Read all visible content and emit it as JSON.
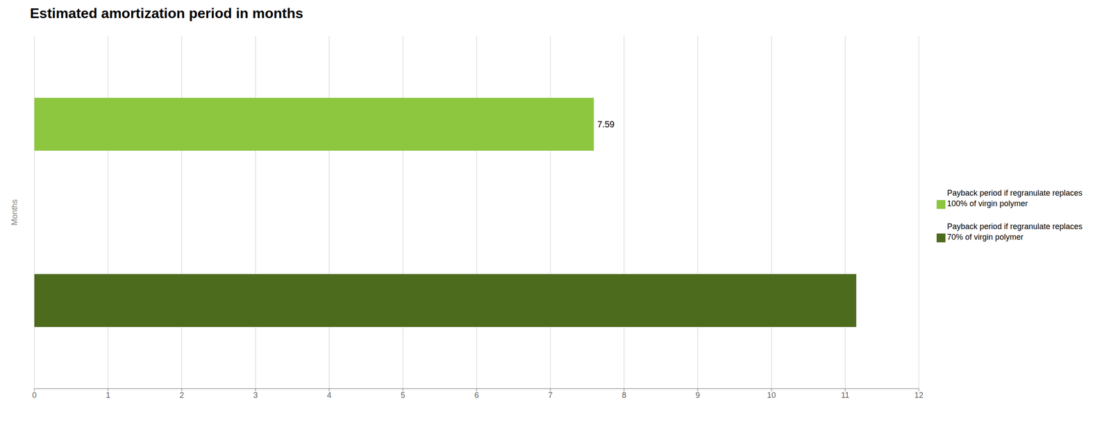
{
  "chart_data": {
    "type": "bar",
    "orientation": "horizontal",
    "title": "Estimated amortization period in months",
    "ylabel": "Months",
    "categories": [
      null,
      null
    ],
    "series": [
      {
        "name": "Payback period if regranulate replaces\n100% of virgin polymer",
        "color": "#8dc63f",
        "values": [
          7.59,
          null
        ]
      },
      {
        "name": "Payback period if regranulate replaces\n70% of virgin polymer",
        "color": "#4d6b1c",
        "values": [
          null,
          11.15
        ]
      }
    ],
    "xlim": [
      0,
      12
    ],
    "xticks": [
      0,
      1,
      2,
      3,
      4,
      5,
      6,
      7,
      8,
      9,
      10,
      11,
      12
    ],
    "grid": true,
    "data_labels": true,
    "tick_labels": "x",
    "legend": "right"
  }
}
